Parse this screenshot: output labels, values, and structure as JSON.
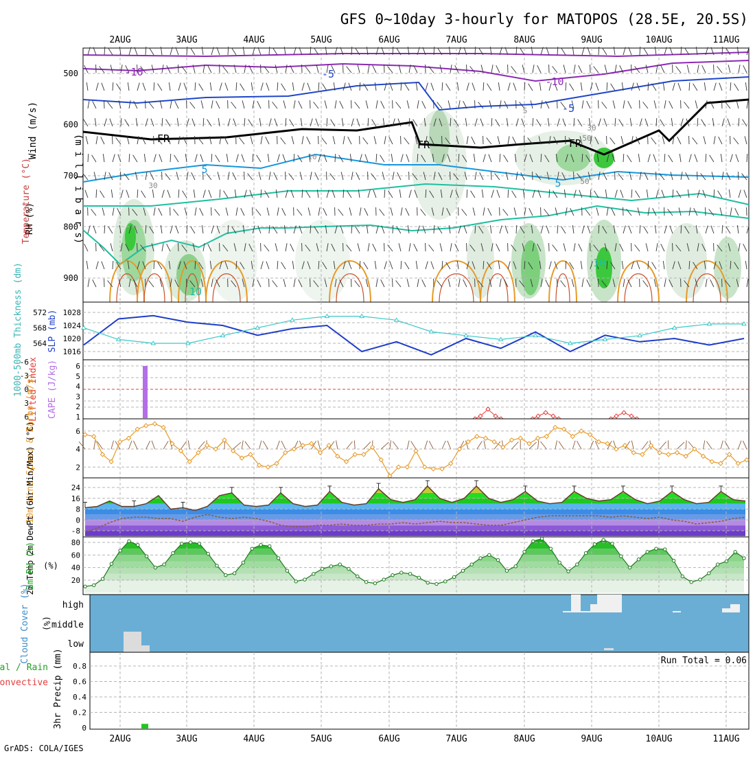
{
  "title": "GFS 0~10day 3-hourly for MATOPOS (28.5E, 20.5S)",
  "footer": "GrADS: COLA/IGES",
  "dates": [
    "2AUG",
    "3AUG",
    "4AUG",
    "5AUG",
    "6AUG",
    "7AUG",
    "8AUG",
    "9AUG",
    "10AUG",
    "11AUG"
  ],
  "colors": {
    "grid": "#b4b4b4",
    "blue_line": "#1e3cc8",
    "cyan_line": "#3cc8c8",
    "orange": "#e69a28",
    "purple": "#b46ee6",
    "red": "#e63c3c",
    "brown": "#8c5a3c",
    "green_fill": "#3cc83c",
    "cloud_bg": "#6aaed6",
    "cloud_white": "#f0f0f0"
  },
  "panels": {
    "wind_temp": {
      "ylabel_parts": [
        "RH (%)",
        "Temperature (°C)",
        "Wind (m/s)"
      ],
      "axis_label": "(m i l l i b a r s)",
      "y_ticks": [
        "500",
        "600",
        "700",
        "800",
        "900"
      ],
      "contour_labels": [
        "-10",
        "-5",
        "-5",
        "-10",
        "FR",
        "FR",
        "FR",
        "5",
        "5",
        "10",
        "10",
        "30",
        "50",
        "30",
        "50",
        "10",
        "5"
      ]
    },
    "slp": {
      "ylabel_left": "1000-500mb Thickness (dm)",
      "ylabel_right": "SLP (mb)",
      "thick_ticks": [
        "572",
        "568",
        "564"
      ],
      "slp_ticks": [
        "1028",
        "1024",
        "1020",
        "1016"
      ]
    },
    "cape": {
      "ylabel_left": "Lifted Index",
      "ylabel_right": "CAPE (J/kg)",
      "li_ticks": [
        "-6",
        "-3",
        "0",
        "3",
        "6"
      ],
      "cape_ticks": [
        "6",
        "5",
        "4",
        "3",
        "2",
        "1"
      ]
    },
    "wind10": {
      "ylabel": "10m Wind Speed & Barbs (m/s)",
      "y_ticks": [
        "6",
        "4",
        "2"
      ]
    },
    "temp2m": {
      "ylabel": "2m Temp 2m DewPt (6hr Min/Max) (°C)",
      "y_ticks": [
        "24",
        "16",
        "8",
        "0",
        "-8"
      ]
    },
    "rh2m": {
      "ylabel": "2m RH (%)",
      "y_ticks": [
        "80",
        "60",
        "40",
        "20"
      ]
    },
    "cloud": {
      "ylabel": "Cloud Cover (%)",
      "levels": [
        "high",
        "middle",
        "low"
      ]
    },
    "precip": {
      "ylabel_left": "Total / Rain",
      "ylabel_left2": "Convective",
      "ylabel": "3hr Precip (mm)",
      "y_ticks": [
        "0.8",
        "0.6",
        "0.4",
        "0.2",
        "0"
      ],
      "run_total": "Run Total = 0.06"
    }
  },
  "chart_data": [
    {
      "type": "line",
      "name": "SLP",
      "x": [
        "2AUG 00",
        "2AUG 12",
        "3AUG 00",
        "3AUG 12",
        "4AUG 00",
        "4AUG 12",
        "5AUG 00",
        "5AUG 12",
        "6AUG 00",
        "6AUG 12",
        "7AUG 00",
        "7AUG 12",
        "8AUG 00",
        "8AUG 12",
        "9AUG 00",
        "9AUG 12",
        "10AUG 00",
        "10AUG 12",
        "11AUG 00",
        "11AUG 06"
      ],
      "series": [
        {
          "name": "SLP (mb)",
          "values": [
            1018,
            1026,
            1027,
            1025,
            1024,
            1021,
            1023,
            1024,
            1016,
            1019,
            1015,
            1020,
            1017,
            1022,
            1016,
            1021,
            1019,
            1020,
            1018,
            1020
          ]
        },
        {
          "name": "1000-500mb Thickness (dm)",
          "values": [
            568,
            565,
            564,
            564,
            566,
            568,
            570,
            571,
            571,
            570,
            567,
            566,
            565,
            566,
            564,
            565,
            566,
            568,
            569,
            569
          ]
        }
      ]
    },
    {
      "type": "bar",
      "name": "CAPE",
      "x": [
        "2AUG 09"
      ],
      "values": [
        6
      ]
    },
    {
      "type": "line",
      "name": "Lifted Index (positive segments)",
      "series": [
        {
          "name": "7AUG-8AUG",
          "x": [
            "7AUG 06",
            "7AUG 12",
            "7AUG 18"
          ],
          "values": [
            5,
            3,
            5
          ]
        },
        {
          "name": "8AUG-9AUG",
          "x": [
            "8AUG 09",
            "8AUG 15",
            "8AUG 21"
          ],
          "values": [
            5,
            4,
            5
          ]
        },
        {
          "name": "9AUG-10AUG",
          "x": [
            "9AUG 09",
            "9AUG 15",
            "9AUG 21"
          ],
          "values": [
            5,
            4,
            5
          ]
        }
      ]
    },
    {
      "type": "line",
      "name": "10m Wind Speed",
      "y_unit": "m/s",
      "values": [
        5.6,
        5.4,
        3.4,
        2.6,
        4.8,
        5.2,
        6.2,
        6.6,
        6.8,
        6.4,
        4.6,
        3.8,
        2.6,
        3.6,
        4.4,
        4.0,
        5.0,
        3.8,
        3.0,
        3.4,
        2.2,
        2.0,
        2.4,
        3.6,
        4.0,
        4.4,
        4.6,
        3.6,
        4.4,
        3.2,
        2.6,
        3.4,
        3.4,
        4.2,
        2.8,
        1.0,
        2.0,
        2.0,
        3.8,
        2.0,
        1.8,
        1.8,
        2.4,
        4.0,
        4.8,
        5.4,
        5.2,
        4.8,
        4.2,
        5.0,
        5.2,
        4.6,
        5.2,
        5.4,
        6.4,
        6.2,
        5.4,
        6.0,
        5.6,
        4.8,
        4.6,
        4.0,
        4.4,
        3.6,
        3.4,
        4.4,
        3.6,
        3.4,
        3.6,
        3.2,
        4.0,
        3.2,
        2.6,
        2.4,
        3.4,
        2.4,
        2.8
      ]
    },
    {
      "type": "area",
      "name": "2m Temp / DewPt",
      "y_unit": "°C",
      "series": [
        {
          "name": "2m Temp",
          "values": [
            9,
            10,
            14,
            10,
            10,
            12,
            18,
            8,
            9,
            7,
            10,
            18,
            20,
            11,
            10,
            11,
            20,
            12,
            10,
            11,
            21,
            13,
            11,
            12,
            23,
            15,
            13,
            15,
            25,
            16,
            13,
            16,
            25,
            16,
            13,
            15,
            21,
            14,
            12,
            13,
            21,
            16,
            14,
            15,
            21,
            15,
            12,
            14,
            21,
            15,
            12,
            13,
            21,
            15,
            14
          ]
        },
        {
          "name": "2m DewPt",
          "values": [
            -9,
            -6,
            -2,
            1,
            2,
            2,
            1,
            1,
            -1,
            2,
            4,
            2,
            1,
            2,
            1,
            -1,
            -4,
            -5,
            -5,
            -4,
            -4,
            -3,
            -4,
            -4,
            -3,
            -3,
            -2,
            -3,
            -2,
            -1,
            -2,
            -2,
            -3,
            -4,
            -4,
            -2,
            0,
            2,
            3,
            3,
            3,
            3,
            3,
            2,
            3,
            2,
            1,
            2,
            0,
            -1,
            -3,
            -2,
            -1,
            1,
            2
          ]
        }
      ]
    },
    {
      "type": "area",
      "name": "2m RH",
      "y_unit": "%",
      "values": [
        10,
        12,
        22,
        46,
        67,
        82,
        76,
        58,
        40,
        45,
        63,
        78,
        80,
        78,
        62,
        43,
        28,
        31,
        48,
        70,
        76,
        74,
        55,
        35,
        18,
        21,
        30,
        38,
        42,
        45,
        38,
        26,
        17,
        15,
        21,
        28,
        32,
        30,
        24,
        16,
        14,
        18,
        25,
        35,
        45,
        55,
        60,
        52,
        35,
        42,
        65,
        82,
        86,
        70,
        48,
        34,
        45,
        63,
        77,
        84,
        78,
        58,
        40,
        53,
        65,
        70,
        69,
        51,
        26,
        17,
        21,
        31,
        45,
        50,
        65,
        55
      ]
    },
    {
      "type": "bar",
      "name": "3hr Precip",
      "y_unit": "mm",
      "x": [
        "2AUG 09"
      ],
      "values": [
        0.06
      ]
    }
  ]
}
